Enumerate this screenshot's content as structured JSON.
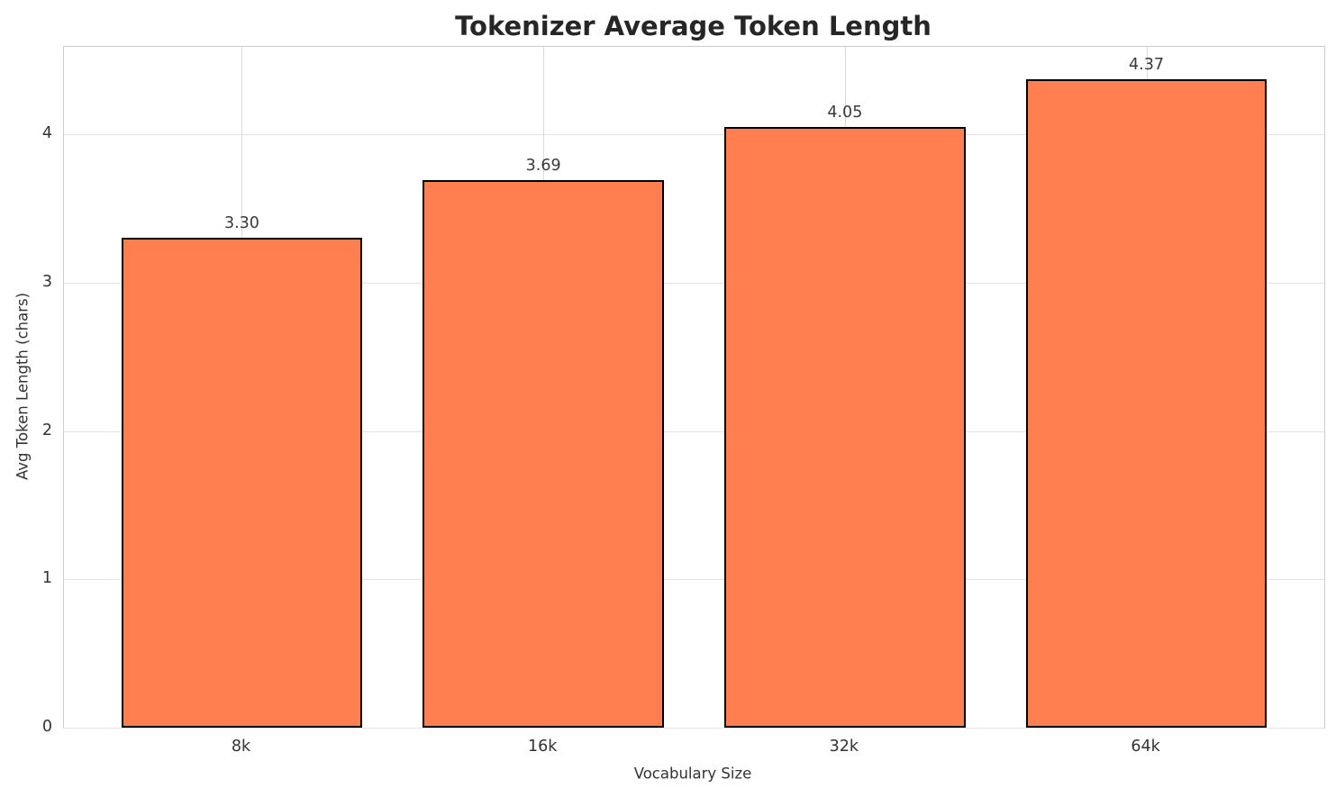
{
  "chart_data": {
    "type": "bar",
    "title": "Tokenizer Average Token Length",
    "xlabel": "Vocabulary Size",
    "ylabel": "Avg Token Length (chars)",
    "categories": [
      "8k",
      "16k",
      "32k",
      "64k"
    ],
    "values": [
      3.3,
      3.69,
      4.05,
      4.37
    ],
    "value_labels": [
      "3.30",
      "3.69",
      "4.05",
      "4.37"
    ],
    "yticks": [
      "0",
      "1",
      "2",
      "3",
      "4"
    ],
    "ylim": [
      0,
      4.59
    ],
    "grid": true,
    "legend_position": "none",
    "bar_color": "#FF7F50",
    "bar_edge_color": "#000000",
    "grid_color": "#dddddd",
    "text_color": "#333333",
    "title_color": "#262626"
  }
}
